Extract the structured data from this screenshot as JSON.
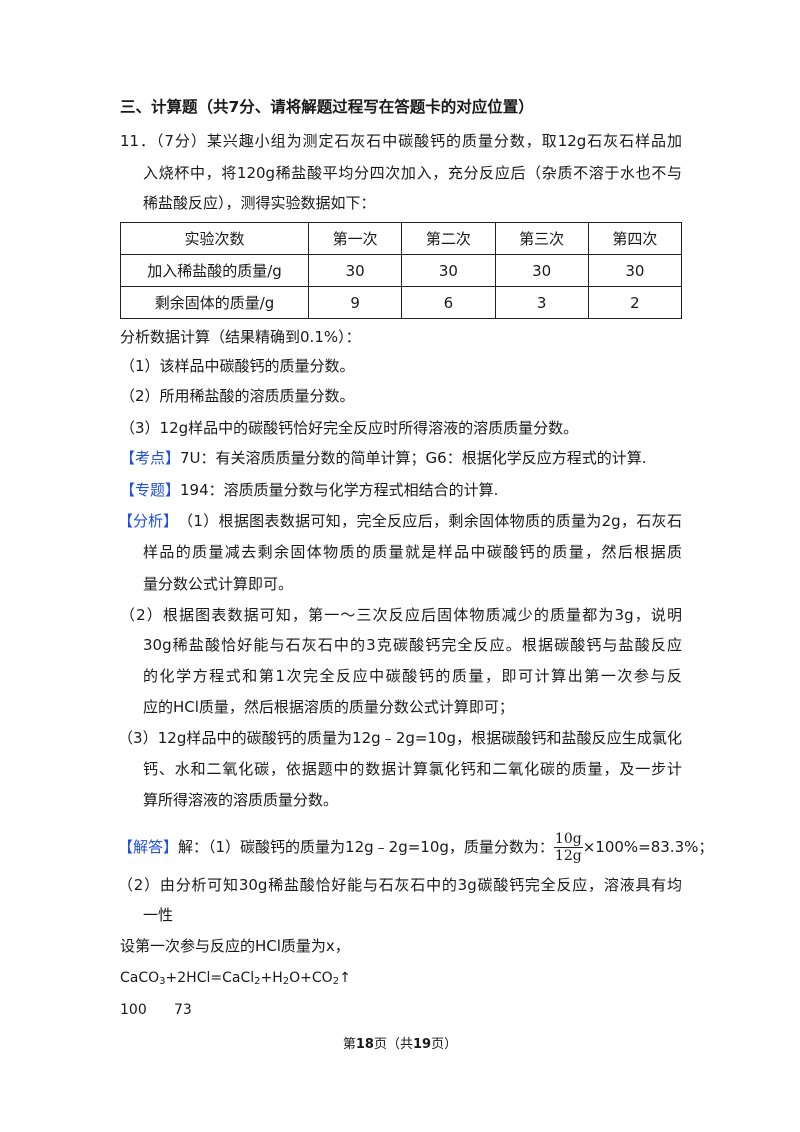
{
  "section_heading": "三、计算题（共7分、请将解题过程写在答题卡的对应位置）",
  "question": {
    "lines": [
      "11．（7分）某兴趣小组为测定石灰石中碳酸钙的质量分数，取12g石灰石样品加",
      "入烧杯中，将120g稀盐酸平均分四次加入，充分反应后（杂质不溶于水也不与",
      "稀盐酸反应），测得实验数据如下："
    ]
  },
  "table": {
    "headers": [
      "实验次数",
      "第一次",
      "第二次",
      "第三次",
      "第四次"
    ],
    "rows": [
      [
        "加入稀盐酸的质量/g",
        "30",
        "30",
        "30",
        "30"
      ],
      [
        "剩余固体的质量/g",
        "9",
        "6",
        "3",
        "2"
      ]
    ]
  },
  "prompt": "分析数据计算（结果精确到0.1%）：",
  "sub_questions": [
    "（1）该样品中碳酸钙的质量分数。",
    "（2）所用稀盐酸的溶质质量分数。",
    "（3）12g样品中的碳酸钙恰好完全反应时所得溶液的溶质质量分数。"
  ],
  "kaodian": {
    "tag": "【考点】",
    "text": "7U：有关溶质质量分数的简单计算；G6：根据化学反应方程式的计算."
  },
  "zhuanti": {
    "tag": "【专题】",
    "text": "194：溶质质量分数与化学方程式相结合的计算."
  },
  "fenxi": {
    "tag": "【分析】",
    "lines": [
      "（1）根据图表数据可知，完全反应后，剩余固体物质的质量为2g，石灰石",
      "样品的质量减去剩余固体物质的质量就是样品中碳酸钙的质量，然后根据质",
      "量分数公式计算即可。",
      "（2）根据图表数据可知，第一～三次反应后固体物质减少的质量都为3g，说明",
      "30g稀盐酸恰好能与石灰石中的3克碳酸钙完全反应。根据碳酸钙与盐酸反应",
      "的化学方程式和第1次完全反应中碳酸钙的质量，即可计算出第一次参与反",
      "应的HCl质量，然后根据溶质的质量分数公式计算即可；",
      "（3）12g样品中的碳酸钙的质量为12g﹣2g=10g，根据碳酸钙和盐酸反应生成氯化",
      "钙、水和二氧化碳，依据题中的数据计算氯化钙和二氧化碳的质量，及一步计",
      "算所得溶液的溶质质量分数。"
    ]
  },
  "jieda": {
    "tag": "【解答】",
    "line1_prefix": "解：（1）碳酸钙的质量为12g﹣2g=10g，质量分数为：",
    "frac_num": "10g",
    "frac_den": "12g",
    "line1_suffix": "×100%=83.3%；",
    "lines": [
      "（2）由分析可知30g稀盐酸恰好能与石灰石中的3g碳酸钙完全反应，溶液具有均",
      "一性",
      "设第一次参与反应的HCl质量为x，"
    ],
    "equation": {
      "p1": "CaCO",
      "s1": "3",
      "p2": "+2HCl=CaCl",
      "s2": "2",
      "p3": "+H",
      "s3": "2",
      "p4": "O+CO",
      "s4": "2",
      "p5": "↑"
    },
    "masses": [
      "100",
      "73"
    ]
  },
  "footer": {
    "pre": "第",
    "page": "18",
    "mid": "页（共",
    "total": "19",
    "post": "页）"
  },
  "colors": {
    "tag": "#1f4fe0",
    "text": "#1a1a1a"
  }
}
